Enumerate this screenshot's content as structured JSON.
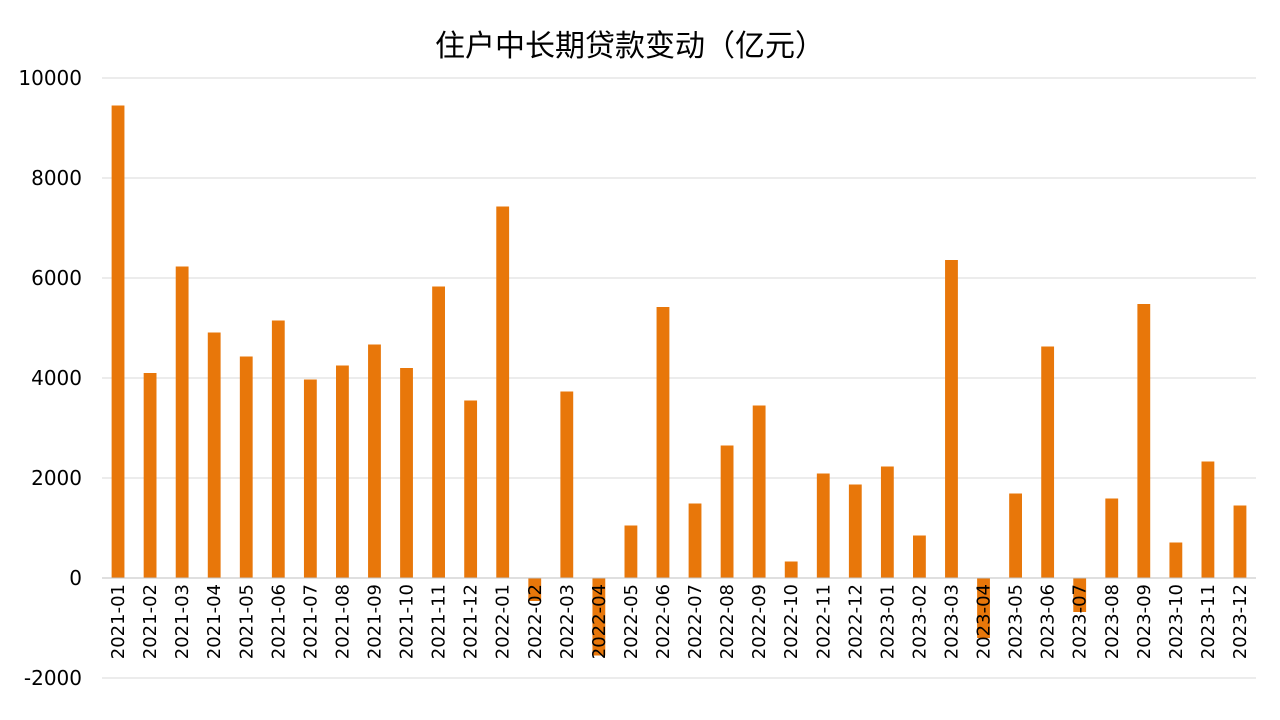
{
  "chart_data": {
    "type": "bar",
    "title": "住户中长期贷款变动（亿元）",
    "xlabel": "",
    "ylabel": "",
    "ylim": [
      -2000,
      10000
    ],
    "yticks": [
      -2000,
      0,
      2000,
      4000,
      6000,
      8000,
      10000
    ],
    "grid": true,
    "bar_color": "#e8770a",
    "categories": [
      "2021-01",
      "2021-02",
      "2021-03",
      "2021-04",
      "2021-05",
      "2021-06",
      "2021-07",
      "2021-08",
      "2021-09",
      "2021-10",
      "2021-11",
      "2021-12",
      "2022-01",
      "2022-02",
      "2022-03",
      "2022-04",
      "2022-05",
      "2022-06",
      "2022-07",
      "2022-08",
      "2022-09",
      "2022-10",
      "2022-11",
      "2022-12",
      "2023-01",
      "2023-02",
      "2023-03",
      "2023-04",
      "2023-05",
      "2023-06",
      "2023-07",
      "2023-08",
      "2023-09",
      "2023-10",
      "2023-11",
      "2023-12"
    ],
    "values": [
      9450,
      4100,
      6230,
      4910,
      4430,
      5150,
      3970,
      4250,
      4670,
      4200,
      5830,
      3550,
      7430,
      -460,
      3730,
      -1550,
      1050,
      5420,
      1490,
      2650,
      3450,
      330,
      2090,
      1870,
      2230,
      850,
      6360,
      -1200,
      1690,
      4630,
      -680,
      1590,
      5480,
      710,
      2330,
      1450
    ]
  }
}
